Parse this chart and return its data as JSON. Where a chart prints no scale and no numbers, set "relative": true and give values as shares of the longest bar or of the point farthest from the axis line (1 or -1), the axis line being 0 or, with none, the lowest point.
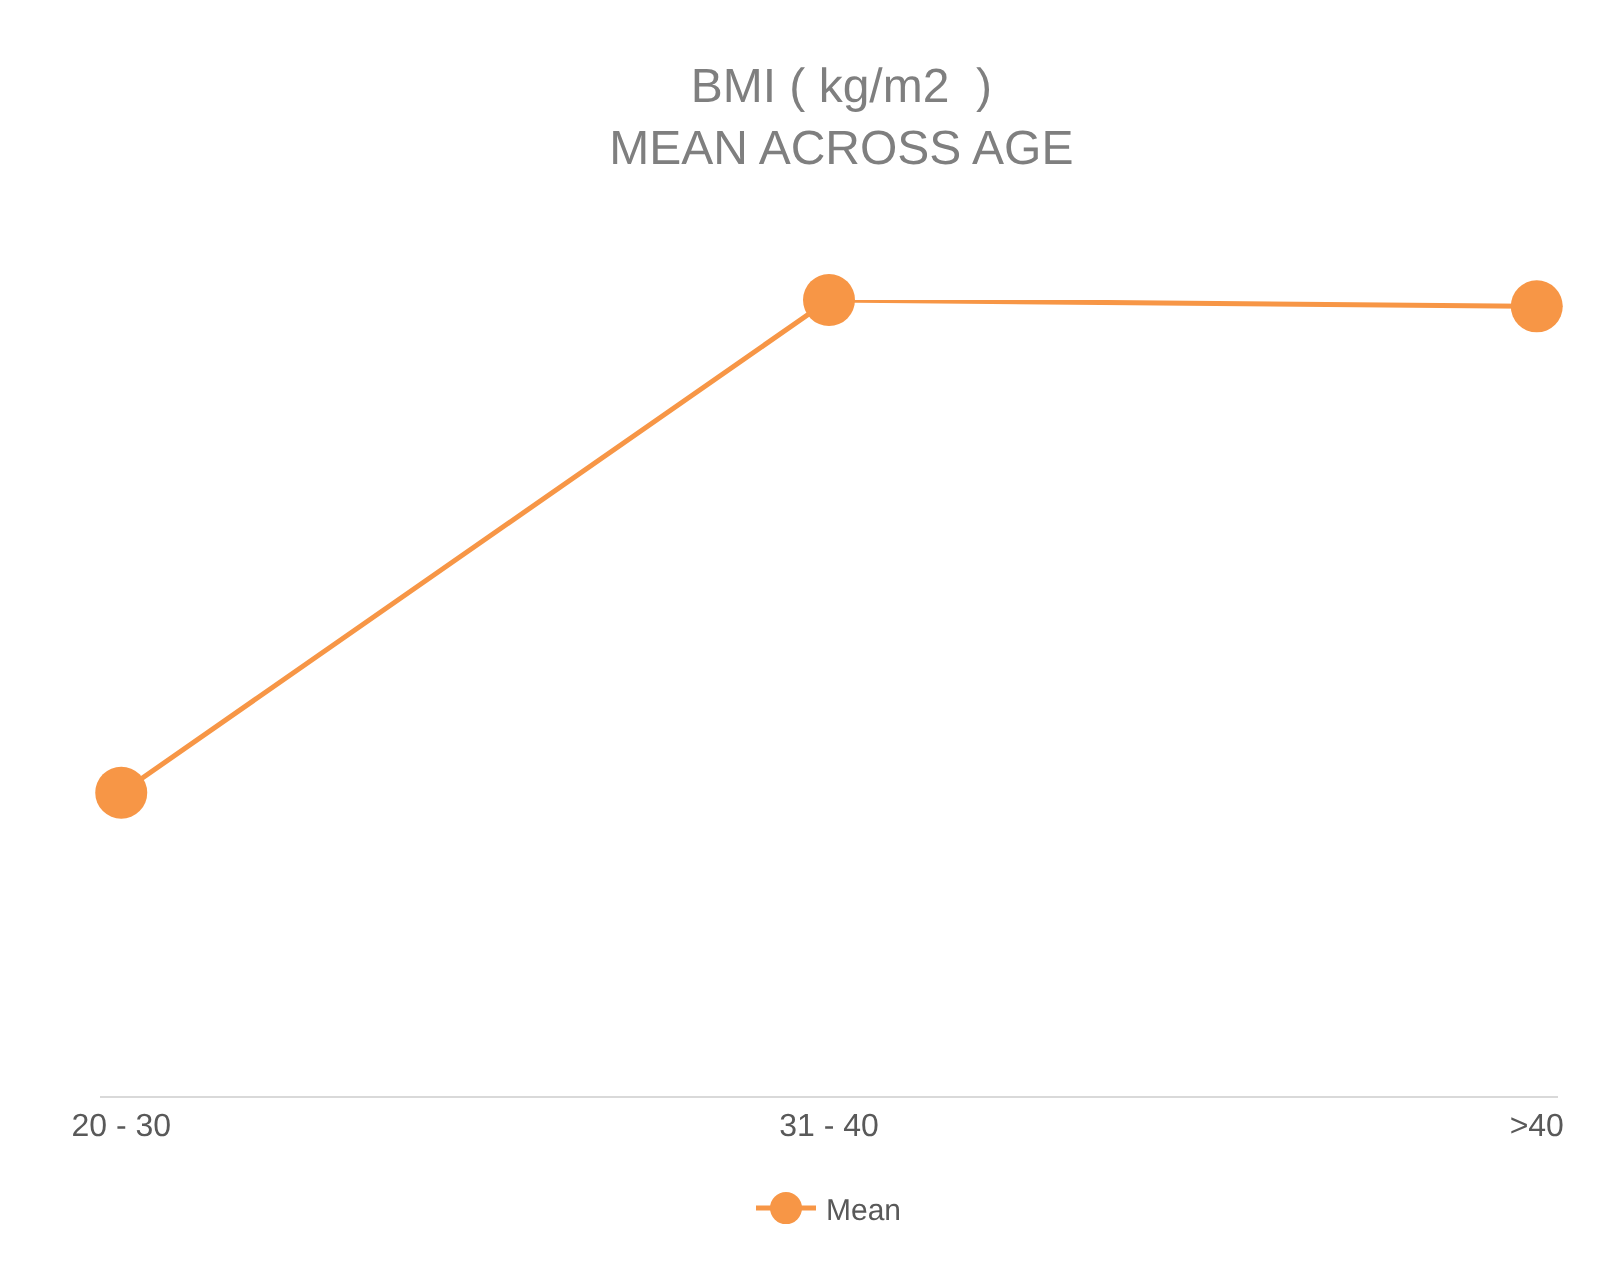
{
  "chart_data": {
    "type": "line",
    "title": "BMI ( kg/m2  )\nMEAN ACROSS AGE",
    "categories": [
      "20 - 30",
      "31 - 40",
      ">40"
    ],
    "relative": true,
    "series": [
      {
        "name": "Mean",
        "color": "#f79646",
        "values": [
          0.381,
          1,
          0.992
        ]
      }
    ],
    "marker": "circle",
    "line_style": "solid",
    "legend": "bottom"
  }
}
